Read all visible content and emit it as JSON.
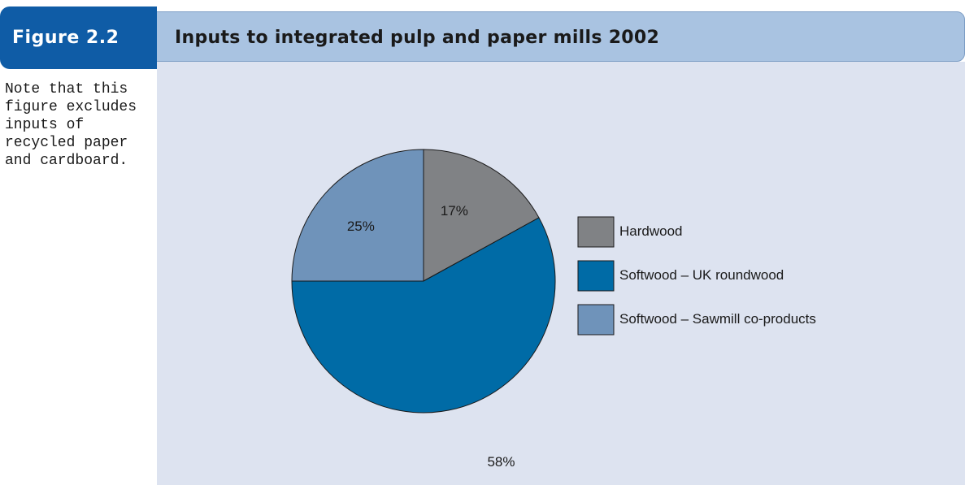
{
  "figure_label": "Figure 2.2",
  "figure_title": "Inputs to integrated pulp and paper mills 2002",
  "note_lines": [
    "Note that this",
    "figure excludes",
    "inputs of",
    "recycled paper",
    "and cardboard."
  ],
  "chart_data": {
    "type": "pie",
    "title": "Inputs to integrated pulp and paper mills 2002",
    "categories": [
      "Hardwood",
      "Softwood – UK roundwood",
      "Softwood – Sawmill co-products"
    ],
    "values": [
      17,
      58,
      25
    ],
    "labels": [
      "17%",
      "58%",
      "25%"
    ],
    "colors": [
      "#808285",
      "#006ba6",
      "#6f93ba"
    ],
    "legend_position": "right"
  }
}
